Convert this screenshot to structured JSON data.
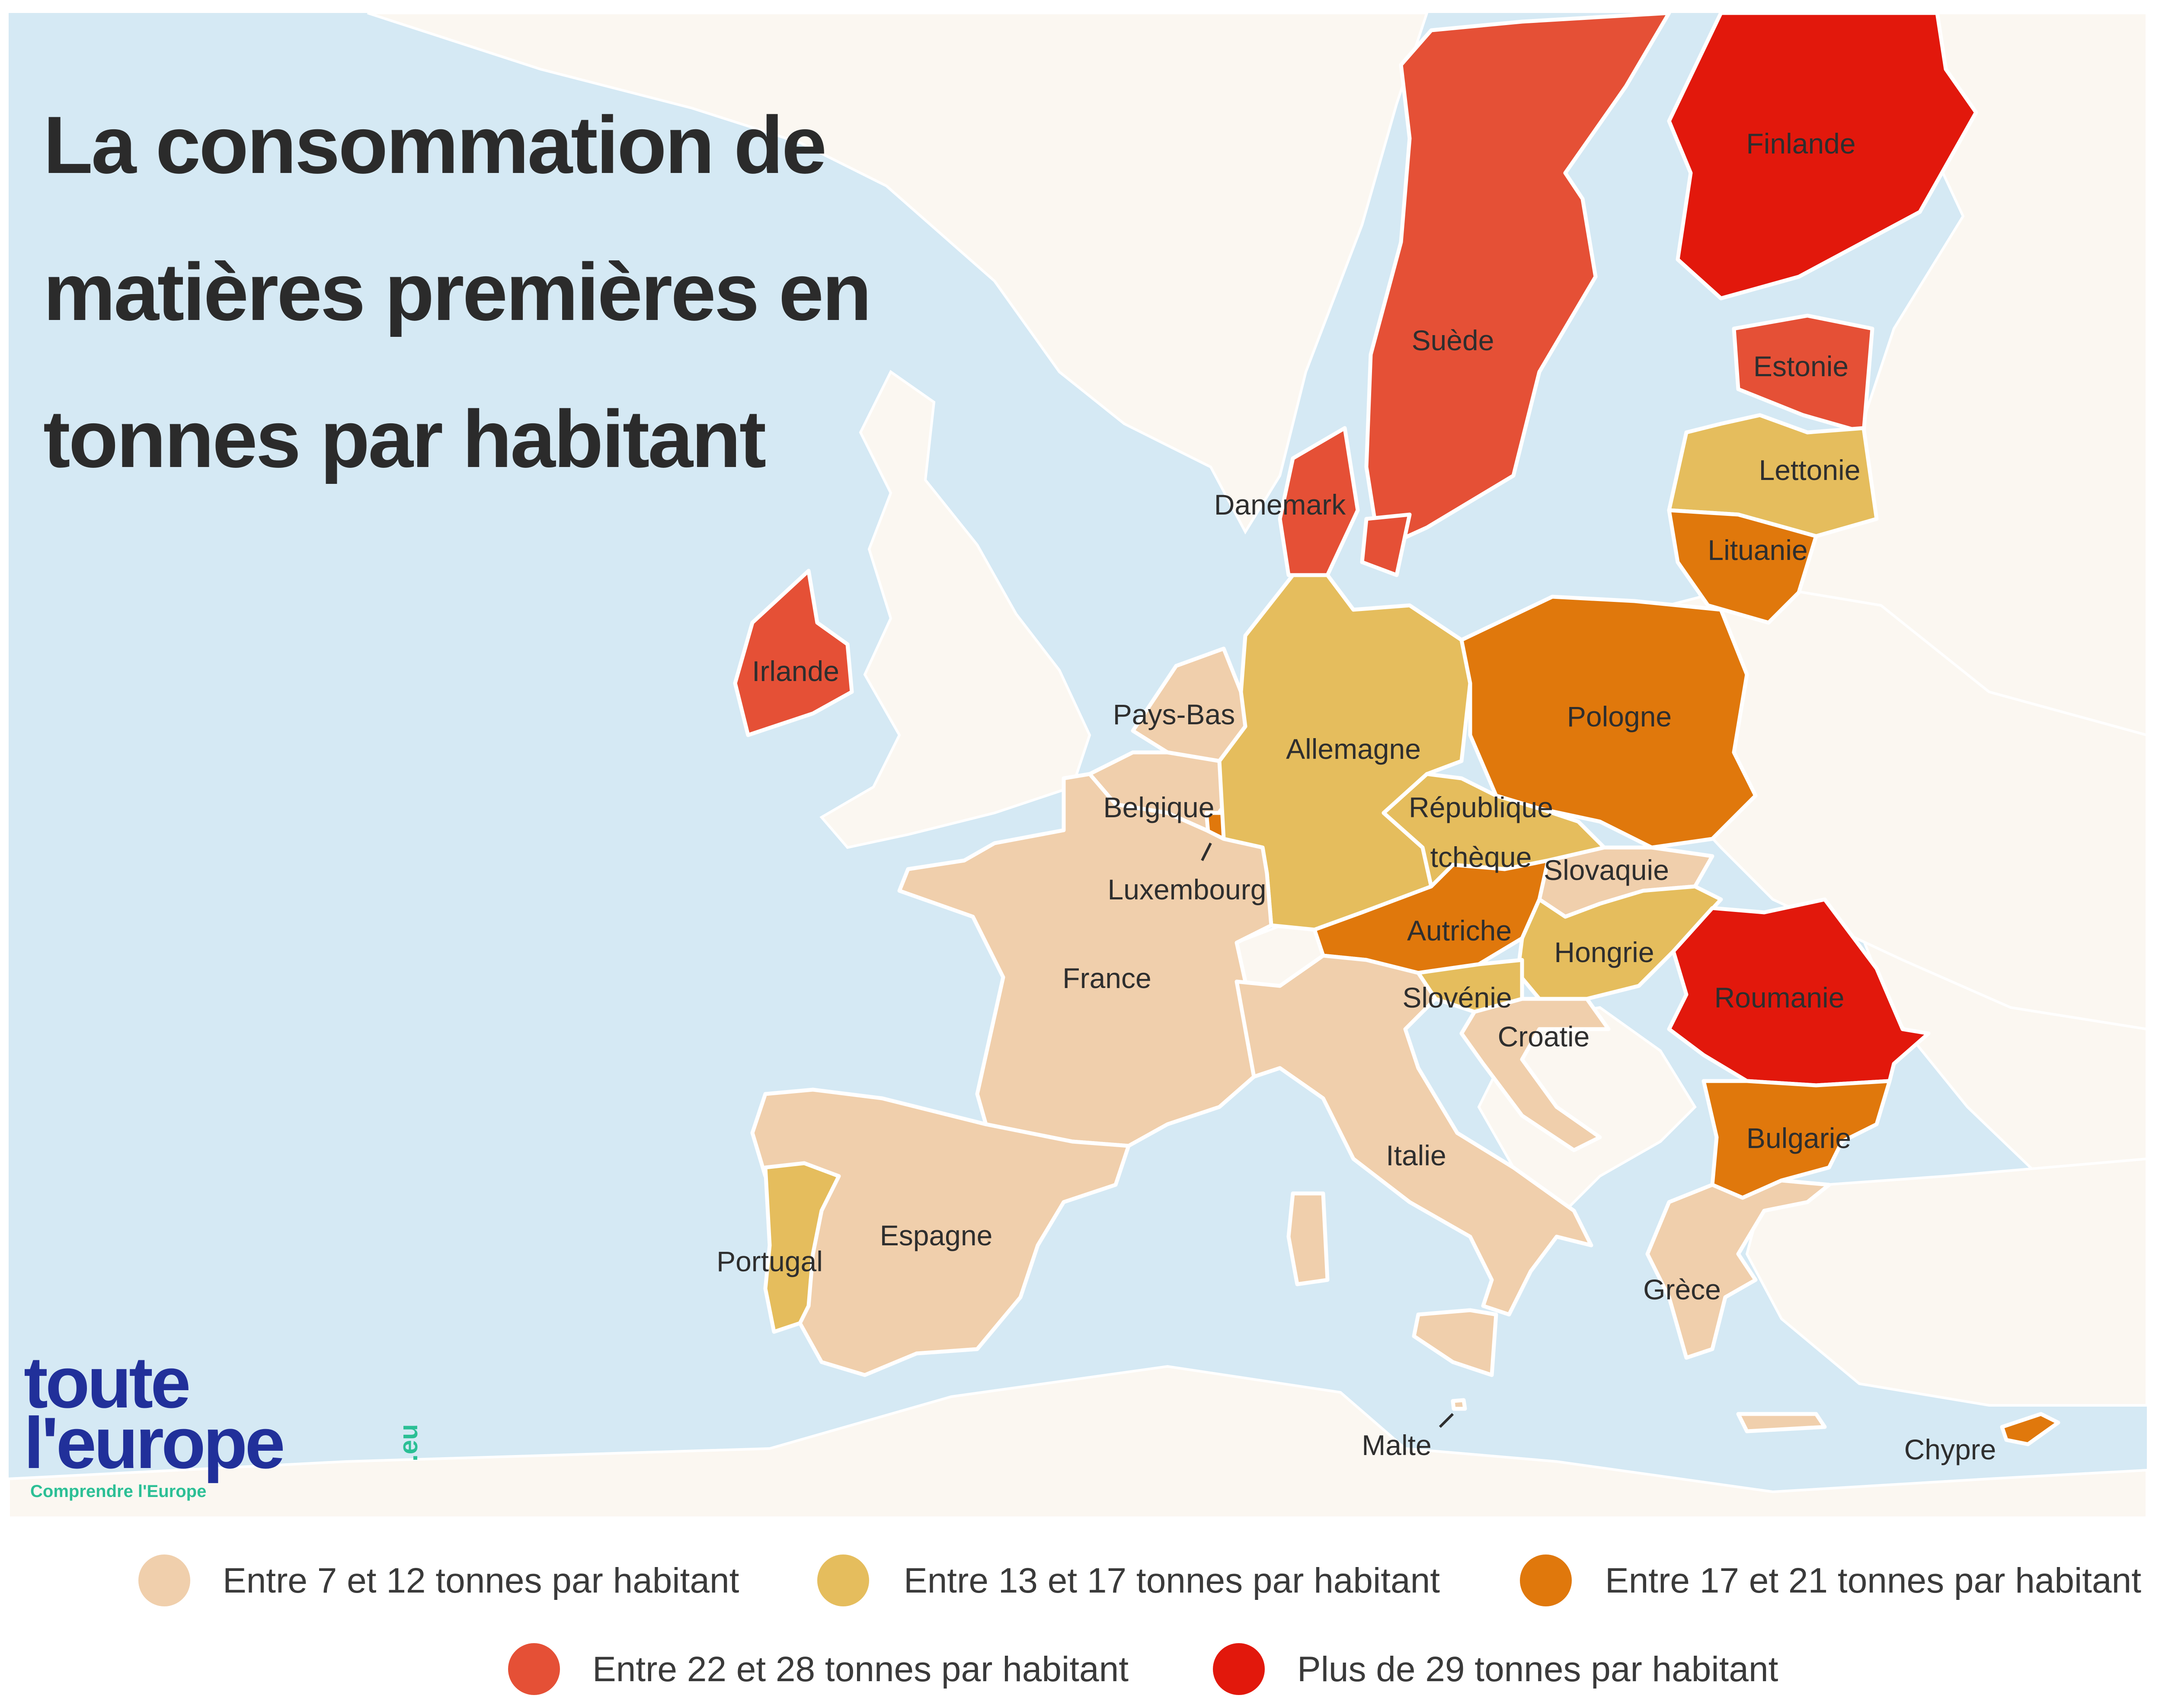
{
  "title_lines": [
    "La consommation de",
    "matières premières en",
    "tonnes par habitant"
  ],
  "colors": {
    "sea": "#d5e9f4",
    "land": "#fbf7f1",
    "cat1": "#f0cfac",
    "cat2": "#e5bd5d",
    "cat3": "#e0780c",
    "cat4": "#e55036",
    "cat5": "#e2180c"
  },
  "legend": [
    {
      "label": "Entre 7 et 12 tonnes par habitant",
      "color": "#f0cfac"
    },
    {
      "label": "Entre 13 et 17 tonnes par habitant",
      "color": "#e5bd5d"
    },
    {
      "label": "Entre 17 et 21 tonnes par habitant",
      "color": "#e0780c"
    },
    {
      "label": "Entre 22 et 28 tonnes par habitant",
      "color": "#e55036"
    },
    {
      "label": "Plus de 29 tonnes par habitant",
      "color": "#e2180c"
    }
  ],
  "countries": [
    {
      "name": "Finlande",
      "category": 5
    },
    {
      "name": "Suède",
      "category": 4
    },
    {
      "name": "Estonie",
      "category": 4
    },
    {
      "name": "Lettonie",
      "category": 2
    },
    {
      "name": "Lituanie",
      "category": 3
    },
    {
      "name": "Danemark",
      "category": 4
    },
    {
      "name": "Irlande",
      "category": 4
    },
    {
      "name": "Pays-Bas",
      "category": 1
    },
    {
      "name": "Belgique",
      "category": 1
    },
    {
      "name": "Luxembourg",
      "category": 3
    },
    {
      "name": "Allemagne",
      "category": 2
    },
    {
      "name": "Pologne",
      "category": 3
    },
    {
      "name": "République",
      "category": 2
    },
    {
      "name": "tchèque",
      "category": 2
    },
    {
      "name": "Slovaquie",
      "category": 1
    },
    {
      "name": "Autriche",
      "category": 3
    },
    {
      "name": "Hongrie",
      "category": 2
    },
    {
      "name": "Slovénie",
      "category": 2
    },
    {
      "name": "Croatie",
      "category": 1
    },
    {
      "name": "Roumanie",
      "category": 5
    },
    {
      "name": "Bulgarie",
      "category": 3
    },
    {
      "name": "France",
      "category": 1
    },
    {
      "name": "Italie",
      "category": 1
    },
    {
      "name": "Espagne",
      "category": 1
    },
    {
      "name": "Portugal",
      "category": 2
    },
    {
      "name": "Grèce",
      "category": 1
    },
    {
      "name": "Malte",
      "category": 1
    },
    {
      "name": "Chypre",
      "category": 3
    }
  ],
  "logo": {
    "line1": "toute",
    "line2": "l'europe",
    "suffix": ".eu",
    "tagline": "Comprendre l'Europe"
  }
}
